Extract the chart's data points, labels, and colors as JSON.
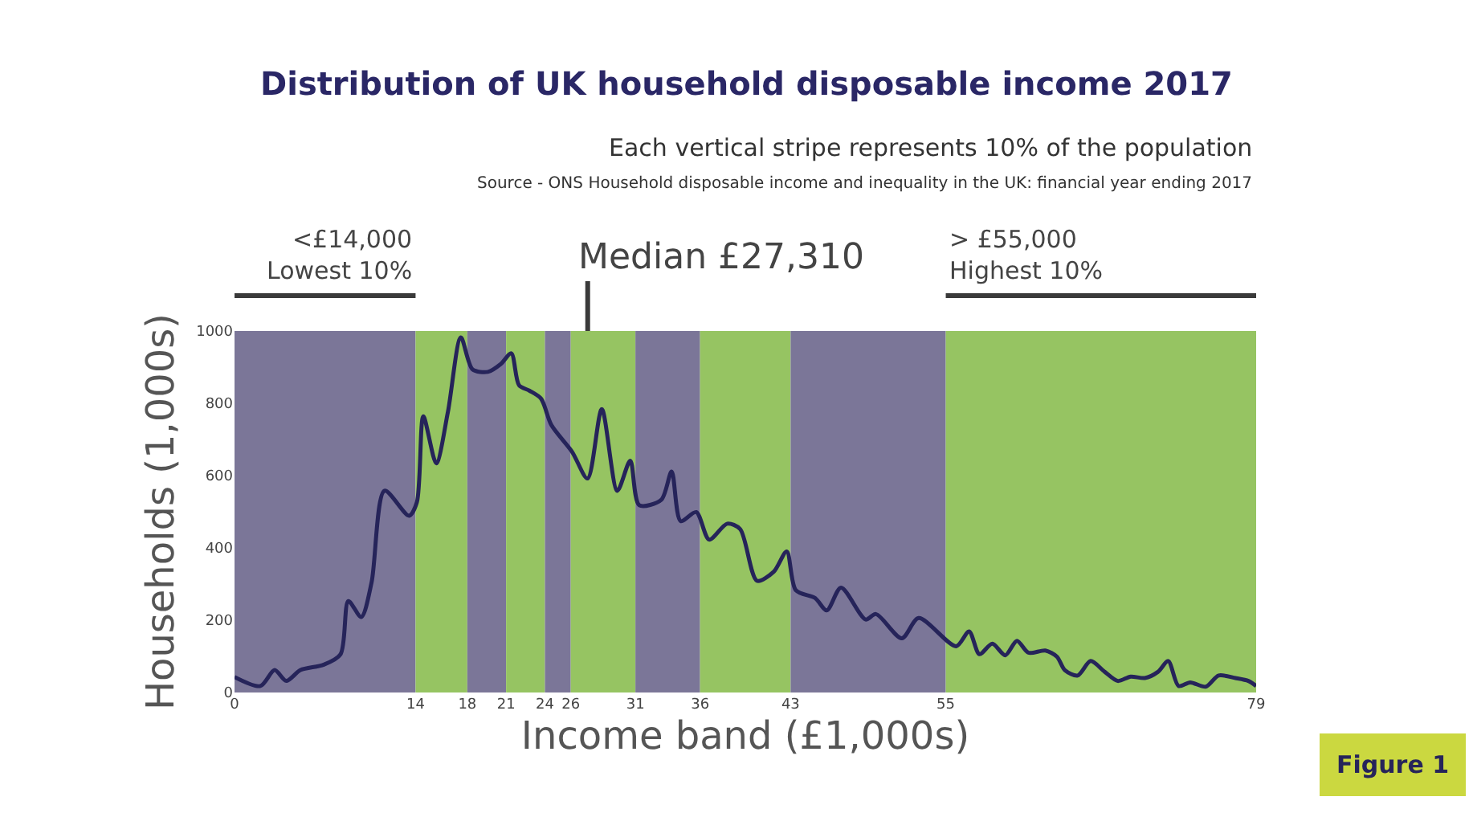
{
  "chart_data": {
    "type": "line",
    "title": "Distribution of UK household disposable income 2017",
    "subtitle": "Each vertical stripe represents 10% of the population",
    "xlabel": "Income band (£1,000s)",
    "ylabel": "Households (1,000s)",
    "annotations": [
      "Source - ONS Household disposable income and inequality in the UK: financial year ending 2017",
      "<£14,000\nLowest 10%",
      "> £55,000\nHighest 10%",
      "Figure 1"
    ],
    "ref_lines": [
      {
        "axis": "x",
        "value": 27.31,
        "label": "Median £27,310",
        "color": "#3a3a3a"
      }
    ],
    "series": [
      {
        "color": "#26245a",
        "x": [
          0,
          2.0,
          3.1,
          4.0,
          5.1,
          6.9,
          8.2,
          8.8,
          9.8,
          10.6,
          11.6,
          13.5,
          14.1,
          14.6,
          15.6,
          16.5,
          17.5,
          18.4,
          19.6,
          20.6,
          21.4,
          22.0,
          22.8,
          23.7,
          24.5,
          26.1,
          27.3,
          28.4,
          29.6,
          30.6,
          31.3,
          33.0,
          33.8,
          34.5,
          35.7,
          36.7,
          38.1,
          39.1,
          40.4,
          41.7,
          42.7,
          43.4,
          44.9,
          45.8,
          46.9,
          48.8,
          49.6,
          51.6,
          52.9,
          55.8,
          56.8,
          57.6,
          58.6,
          59.6,
          60.5,
          61.4,
          62.7,
          63.6,
          64.2,
          65.2,
          66.2,
          67.3,
          68.3,
          69.3,
          70.4,
          71.4,
          72.2,
          73.0,
          73.9,
          75.1,
          76.1,
          77.4,
          78.4,
          79
        ],
        "values": [
          43,
          18,
          62,
          32,
          62,
          77,
          106,
          253,
          209,
          305,
          558,
          489,
          526,
          764,
          634,
          776,
          982,
          894,
          887,
          909,
          938,
          850,
          835,
          813,
          740,
          666,
          592,
          784,
          558,
          641,
          518,
          533,
          611,
          474,
          499,
          423,
          467,
          452,
          309,
          334,
          390,
          283,
          261,
          227,
          290,
          202,
          217,
          150,
          206,
          128,
          169,
          106,
          135,
          103,
          143,
          110,
          116,
          99,
          62,
          47,
          87,
          57,
          32,
          44,
          40,
          57,
          87,
          18,
          28,
          16,
          47,
          40,
          32,
          18
        ]
      }
    ],
    "bands": [
      {
        "axis": "x",
        "from": 0,
        "to": 14,
        "color": "#7b7698"
      },
      {
        "axis": "x",
        "from": 14,
        "to": 18,
        "color": "#96c462"
      },
      {
        "axis": "x",
        "from": 18,
        "to": 21,
        "color": "#7b7698"
      },
      {
        "axis": "x",
        "from": 21,
        "to": 24,
        "color": "#96c462"
      },
      {
        "axis": "x",
        "from": 24,
        "to": 26,
        "color": "#7b7698"
      },
      {
        "axis": "x",
        "from": 26,
        "to": 31,
        "color": "#96c462"
      },
      {
        "axis": "x",
        "from": 31,
        "to": 36,
        "color": "#7b7698"
      },
      {
        "axis": "x",
        "from": 36,
        "to": 43,
        "color": "#96c462"
      },
      {
        "axis": "x",
        "from": 43,
        "to": 55,
        "color": "#7b7698"
      },
      {
        "axis": "x",
        "from": 55,
        "to": 79,
        "color": "#96c462"
      }
    ],
    "xlim": [
      0,
      79
    ],
    "xticks": [
      0,
      14,
      18,
      21,
      24,
      26,
      31,
      36,
      43,
      55,
      79
    ],
    "ylim": [
      0,
      1000
    ],
    "yticks": [
      0,
      200,
      400,
      600,
      800,
      1000
    ],
    "grid": false,
    "marker": "none",
    "line_style": "solid"
  }
}
